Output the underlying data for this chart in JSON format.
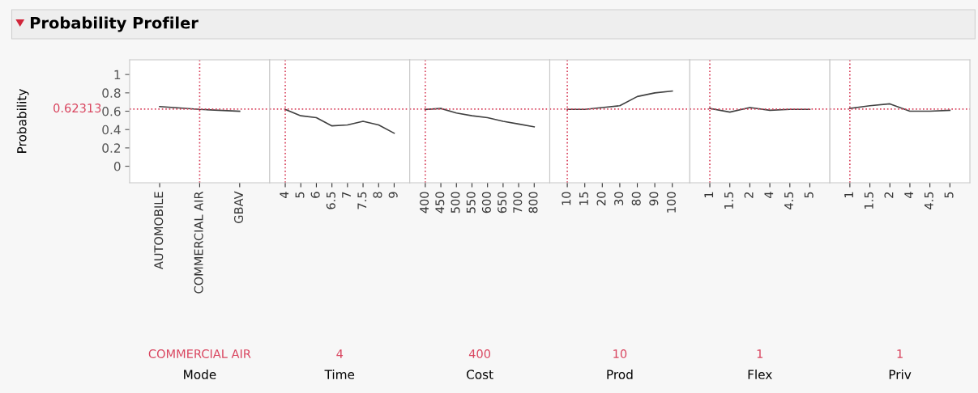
{
  "chart_data": [
    {
      "type": "line",
      "title": "Probability Profiler",
      "ylabel": "Probability",
      "xlabel": "Mode",
      "categories": [
        "AUTOMOBILE",
        "COMMERCIAL AIR",
        "GBAV"
      ],
      "series": [
        {
          "color": "#404040",
          "values": [
            0.65,
            0.62,
            0.6
          ]
        }
      ],
      "ylim": [
        -0.18,
        1.16
      ],
      "yticks": [
        0,
        0.2,
        0.4,
        0.6,
        0.8,
        1
      ],
      "grid": false,
      "annotations": [
        "COMMERCIAL AIR"
      ],
      "ref_lines": [
        {
          "axis": "y",
          "value": 0.62313,
          "label": "0.62313",
          "color": "#d9455f",
          "line_style": "dotted"
        },
        {
          "axis": "x",
          "value": "COMMERCIAL AIR",
          "color": "#d9455f",
          "line_style": "dotted"
        }
      ]
    },
    {
      "type": "line",
      "xlabel": "Time",
      "categories": [
        "4",
        "5",
        "6",
        "6.5",
        "7",
        "7.5",
        "8",
        "9"
      ],
      "series": [
        {
          "color": "#404040",
          "values": [
            0.62,
            0.55,
            0.53,
            0.44,
            0.45,
            0.49,
            0.45,
            0.36
          ]
        }
      ],
      "ylim": [
        -0.18,
        1.16
      ],
      "tick_labels": "x",
      "grid": false,
      "annotations": [
        "4"
      ],
      "ref_lines": [
        {
          "axis": "y",
          "value": 0.62313,
          "color": "#d9455f",
          "line_style": "dotted"
        },
        {
          "axis": "x",
          "value": "4",
          "color": "#d9455f",
          "line_style": "dotted"
        }
      ]
    },
    {
      "type": "line",
      "xlabel": "Cost",
      "categories": [
        "400",
        "450",
        "500",
        "550",
        "600",
        "650",
        "700",
        "800"
      ],
      "series": [
        {
          "color": "#404040",
          "values": [
            0.62,
            0.63,
            0.58,
            0.55,
            0.53,
            0.49,
            0.46,
            0.43
          ]
        }
      ],
      "ylim": [
        -0.18,
        1.16
      ],
      "tick_labels": "x",
      "grid": false,
      "annotations": [
        "400"
      ],
      "ref_lines": [
        {
          "axis": "y",
          "value": 0.62313,
          "color": "#d9455f",
          "line_style": "dotted"
        },
        {
          "axis": "x",
          "value": "400",
          "color": "#d9455f",
          "line_style": "dotted"
        }
      ]
    },
    {
      "type": "line",
      "xlabel": "Prod",
      "categories": [
        "10",
        "15",
        "20",
        "30",
        "80",
        "90",
        "100"
      ],
      "series": [
        {
          "color": "#404040",
          "values": [
            0.62,
            0.62,
            0.64,
            0.66,
            0.76,
            0.8,
            0.82
          ]
        }
      ],
      "ylim": [
        -0.18,
        1.16
      ],
      "tick_labels": "x",
      "grid": false,
      "annotations": [
        "10"
      ],
      "ref_lines": [
        {
          "axis": "y",
          "value": 0.62313,
          "color": "#d9455f",
          "line_style": "dotted"
        },
        {
          "axis": "x",
          "value": "10",
          "color": "#d9455f",
          "line_style": "dotted"
        }
      ]
    },
    {
      "type": "line",
      "xlabel": "Flex",
      "categories": [
        "1",
        "1.5",
        "2",
        "4",
        "4.5",
        "5"
      ],
      "series": [
        {
          "color": "#404040",
          "values": [
            0.63,
            0.59,
            0.64,
            0.61,
            0.62,
            0.62
          ]
        }
      ],
      "ylim": [
        -0.18,
        1.16
      ],
      "tick_labels": "x",
      "grid": false,
      "annotations": [
        "1"
      ],
      "ref_lines": [
        {
          "axis": "y",
          "value": 0.62313,
          "color": "#d9455f",
          "line_style": "dotted"
        },
        {
          "axis": "x",
          "value": "1",
          "color": "#d9455f",
          "line_style": "dotted"
        }
      ]
    },
    {
      "type": "line",
      "xlabel": "Priv",
      "categories": [
        "1",
        "1.5",
        "2",
        "4",
        "4.5",
        "5"
      ],
      "series": [
        {
          "color": "#404040",
          "values": [
            0.63,
            0.66,
            0.68,
            0.6,
            0.6,
            0.61
          ]
        }
      ],
      "ylim": [
        -0.18,
        1.16
      ],
      "tick_labels": "x",
      "grid": false,
      "annotations": [
        "1"
      ],
      "ref_lines": [
        {
          "axis": "y",
          "value": 0.62313,
          "color": "#d9455f",
          "line_style": "dotted"
        },
        {
          "axis": "x",
          "value": "1",
          "color": "#d9455f",
          "line_style": "dotted"
        }
      ]
    }
  ]
}
